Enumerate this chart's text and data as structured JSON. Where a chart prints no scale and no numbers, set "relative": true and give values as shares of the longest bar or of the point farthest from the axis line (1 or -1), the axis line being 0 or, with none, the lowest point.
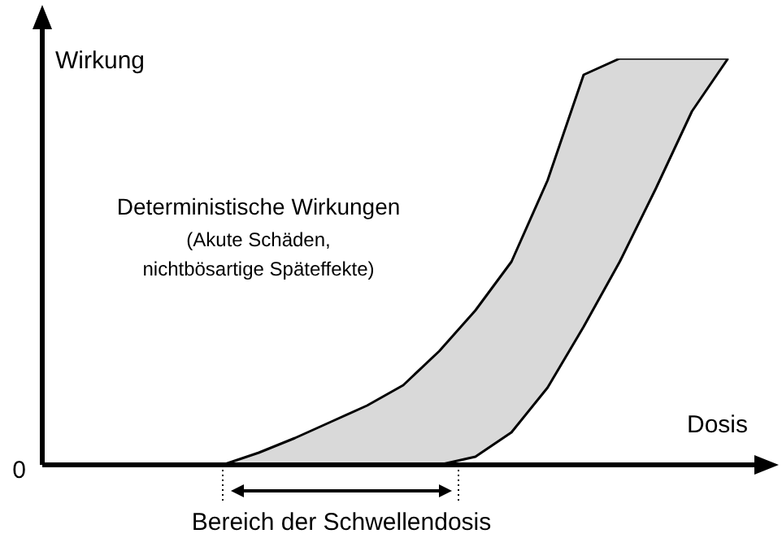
{
  "chart_data": {
    "type": "line",
    "relative": true,
    "xlabel": "Dosis",
    "ylabel": "Wirkung",
    "tick_labels": false,
    "categories": [
      null,
      null,
      null,
      null,
      null,
      null,
      null,
      null,
      null,
      null,
      null,
      null,
      null,
      null,
      null,
      null,
      null,
      null,
      null,
      null,
      null
    ],
    "series": [
      {
        "color": "#000000",
        "values": [
          null,
          null,
          null,
          null,
          null,
          0,
          0.03,
          0.066,
          0.106,
          0.146,
          0.196,
          0.28,
          0.38,
          0.5,
          0.7,
          0.96,
          1,
          1,
          1,
          1,
          null
        ],
        "lower": [
          null,
          null,
          null,
          null,
          null,
          0,
          0,
          0,
          0,
          0,
          0,
          0,
          0.02,
          0.08,
          0.19,
          0.34,
          0.5,
          0.68,
          0.87,
          1,
          null
        ],
        "upper": [
          null,
          null,
          null,
          null,
          null,
          0,
          0.03,
          0.066,
          0.106,
          0.146,
          0.196,
          0.28,
          0.38,
          0.5,
          0.7,
          0.96,
          1,
          1,
          1,
          1,
          null
        ]
      }
    ],
    "annotations": [
      "0",
      "Deterministische Wirkungen",
      "(Akute Schäden,",
      "nichtbösartige Späteffekte)",
      "Bereich der Schwellendosis"
    ]
  }
}
